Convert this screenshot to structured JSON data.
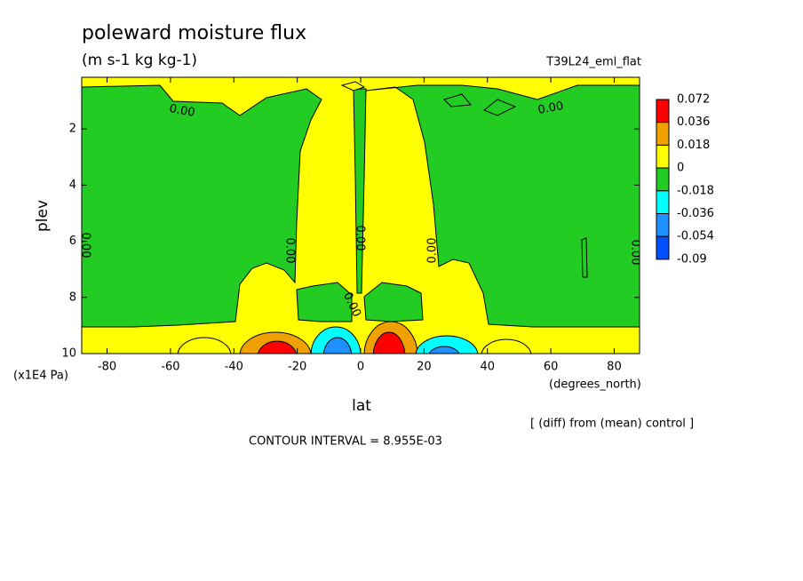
{
  "chart_data": {
    "type": "contour",
    "title": "poleward moisture flux",
    "subtitle": "(m s-1 kg kg-1)",
    "run_label": "T39L24_eml_flat",
    "xlabel": "lat",
    "x_units": "(degrees_north)",
    "ylabel": "plev",
    "y_units": "(x1E4 Pa)",
    "note": "[ (diff) from (mean) control ]",
    "contour_interval": "CONTOUR INTERVAL = 8.955E-03",
    "xlim": [
      -88,
      88
    ],
    "xticks": [
      -80,
      -60,
      -40,
      -20,
      0,
      20,
      40,
      60,
      80
    ],
    "ylim": [
      10,
      0.16
    ],
    "yticks": [
      2,
      4,
      6,
      8,
      10
    ],
    "levels": [
      0.072,
      0.036,
      0.018,
      0,
      -0.018,
      -0.036,
      -0.054,
      -0.09
    ],
    "colors": [
      "#ff0000",
      "#f0a000",
      "#ffff00",
      "#22cc22",
      "#00ffff",
      "#1e90ff",
      "#0050ff"
    ],
    "contour_labels": [
      "0.00",
      "0.00",
      "0.00",
      "0.00",
      "0.00",
      "0.00",
      "0.00",
      "0.00"
    ]
  }
}
